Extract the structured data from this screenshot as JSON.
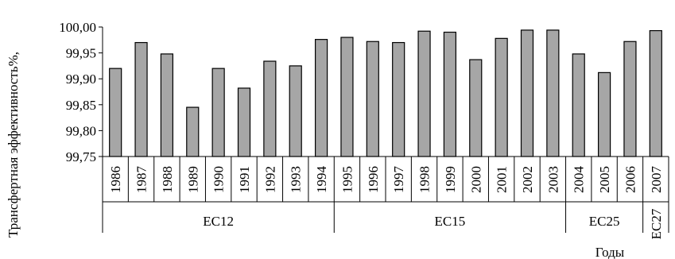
{
  "chart_data": {
    "type": "bar",
    "ylabel": "Трансфертная эффективность%,",
    "xlabel": "Годы",
    "ylim": [
      99.75,
      100.0
    ],
    "yticks": [
      "99,75",
      "99,80",
      "99,85",
      "99,90",
      "99,95",
      "100,00"
    ],
    "grid": false,
    "categories": [
      "1986",
      "1987",
      "1988",
      "1989",
      "1990",
      "1991",
      "1992",
      "1993",
      "1994",
      "1995",
      "1996",
      "1997",
      "1998",
      "1999",
      "2000",
      "2001",
      "2002",
      "2003",
      "2004",
      "2005",
      "2006",
      "2007"
    ],
    "values": [
      99.92,
      99.97,
      99.948,
      99.845,
      99.92,
      99.882,
      99.934,
      99.925,
      99.976,
      99.98,
      99.972,
      99.97,
      99.992,
      99.99,
      99.937,
      99.978,
      99.994,
      99.994,
      99.948,
      99.912,
      99.972,
      99.993
    ],
    "groups": [
      {
        "label": "EC12",
        "count": 9
      },
      {
        "label": "EC15",
        "count": 9
      },
      {
        "label": "EC25",
        "count": 3
      },
      {
        "label": "EC27",
        "count": 1
      }
    ],
    "colors": {
      "bar_fill": "#a6a6a6",
      "bar_stroke": "#000000",
      "axis": "#000000"
    }
  }
}
